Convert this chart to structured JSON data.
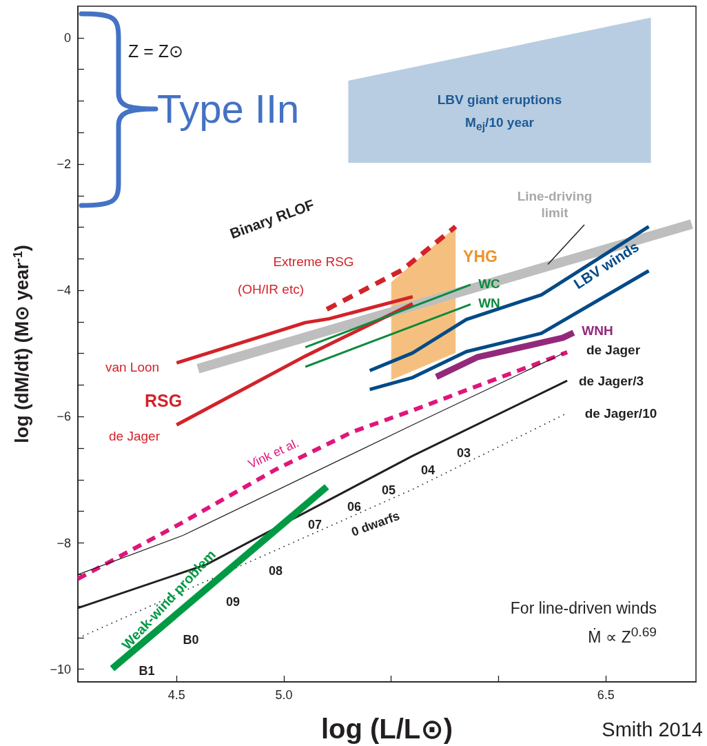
{
  "chart_data": {
    "type": "line",
    "xlabel": "log (L/L⊙)",
    "ylabel": "log (dM/dt) (M⊙ year$^{-1}$)",
    "xlim": [
      4.04,
      6.92
    ],
    "ylim": [
      -10.2,
      0.5
    ],
    "xticks": [
      4.5,
      {
        "value": 5,
        "label": "5.0"
      },
      {
        "value": 5.5,
        "label": null
      },
      {
        "value": 6,
        "label": null
      },
      6.5
    ],
    "yticks": [
      0,
      {
        "value": -0.5,
        "label": null
      },
      {
        "value": -1,
        "label": null
      },
      {
        "value": -1.5,
        "label": null
      },
      -2,
      {
        "value": -2.5,
        "label": null
      },
      {
        "value": -3,
        "label": null
      },
      {
        "value": -3.5,
        "label": null
      },
      -4,
      {
        "value": -4.5,
        "label": null
      },
      {
        "value": -5,
        "label": null
      },
      {
        "value": -5.5,
        "label": null
      },
      -6,
      {
        "value": -6.5,
        "label": null
      },
      {
        "value": -7,
        "label": null
      },
      {
        "value": -7.5,
        "label": null
      },
      -8,
      {
        "value": -8.5,
        "label": null
      },
      {
        "value": -9,
        "label": null
      },
      {
        "value": -9.5,
        "label": null
      },
      -10
    ],
    "grid": false,
    "marker": "none",
    "series": [
      {
        "type": "area",
        "color": "#b8cde1",
        "x": [
          5.3,
          6.71,
          6.71,
          5.3
        ],
        "values": [
          -0.68,
          0.32,
          -1.98,
          -1.98
        ]
      },
      {
        "type": "area",
        "color": "#f5c07f",
        "x": [
          5.5,
          5.8,
          5.8,
          5.5
        ],
        "values": [
          -3.87,
          -3.0,
          -4.99,
          -5.42
        ]
      },
      {
        "color": "#bebebe",
        "line_style": "solid",
        "x": [
          4.6,
          6.9
        ],
        "values": [
          -5.24,
          -2.95
        ]
      },
      {
        "color": "#d2232a",
        "line_style": "solid",
        "x": [
          4.5,
          5.1,
          5.21,
          5.6
        ],
        "values": [
          -5.15,
          -4.51,
          -4.45,
          -4.1
        ]
      },
      {
        "color": "#d2232a",
        "line_style": "solid",
        "x": [
          4.5,
          5.1,
          5.6
        ],
        "values": [
          -6.13,
          -5.04,
          -4.21
        ]
      },
      {
        "color": "#d2232a",
        "line_style": "dashed",
        "x": [
          5.2,
          5.55,
          5.8
        ],
        "values": [
          -4.3,
          -3.68,
          -2.99
        ]
      },
      {
        "color": "#0b8a3e",
        "line_style": "solid",
        "x": [
          5.1,
          5.87
        ],
        "values": [
          -4.9,
          -3.91
        ]
      },
      {
        "color": "#0b8a3e",
        "line_style": "solid",
        "x": [
          5.1,
          5.87
        ],
        "values": [
          -5.21,
          -4.22
        ]
      },
      {
        "color": "#004b87",
        "line_style": "solid",
        "x": [
          5.4,
          5.6,
          5.85,
          6.2,
          6.7
        ],
        "values": [
          -5.27,
          -4.99,
          -4.46,
          -4.07,
          -2.99
        ]
      },
      {
        "color": "#004b87",
        "line_style": "solid",
        "x": [
          5.4,
          5.6,
          5.85,
          6.2,
          6.7
        ],
        "values": [
          -5.57,
          -5.38,
          -4.97,
          -4.68,
          -3.69
        ]
      },
      {
        "color": "#93297b",
        "line_style": "solid",
        "x": [
          5.71,
          5.9,
          6.3,
          6.35
        ],
        "values": [
          -5.37,
          -5.06,
          -4.75,
          -4.67
        ]
      },
      {
        "color": "#e0157a",
        "line_style": "dashed",
        "x": [
          4.04,
          4.52,
          4.96,
          5.32,
          5.6,
          6.32
        ],
        "values": [
          -8.57,
          -7.69,
          -6.84,
          -6.24,
          -5.9,
          -4.98
        ]
      },
      {
        "color": "#231f20",
        "line_style": "solid",
        "x": [
          4.04,
          4.53,
          5.6,
          6.3
        ],
        "values": [
          -8.5,
          -7.88,
          -6.13,
          -5.0
        ]
      },
      {
        "color": "#231f20",
        "line_style": "solid",
        "x": [
          4.04,
          4.64,
          5.6,
          6.32
        ],
        "values": [
          -9.03,
          -8.34,
          -6.62,
          -5.43
        ]
      },
      {
        "color": "#231f20",
        "line_style": "dotted",
        "x": [
          4.04,
          5.6,
          6.31
        ],
        "values": [
          -9.51,
          -7.15,
          -5.96
        ]
      },
      {
        "color": "#009a44",
        "line_style": "solid",
        "x": [
          4.2,
          5.2
        ],
        "values": [
          -9.99,
          -7.11
        ]
      }
    ],
    "annotations": [
      "Z = Z⊙",
      "Type IIn",
      "LBV giant eruptions",
      "M$_{ej}$/10 year",
      "Binary RLOF",
      {
        "text": "Line-driving\nlimit",
        "x": 6.23,
        "y": -3.59
      },
      "Extreme RSG",
      "(OH/IR etc)",
      "YHG",
      "WC",
      "WN",
      "LBV winds",
      "WNH",
      "de Jager",
      "de Jager/3",
      "de Jager/10",
      "van Loon",
      "RSG",
      "de Jager",
      "Vink et al.",
      "03",
      "04",
      "05",
      "06",
      "07",
      "0 dwarfs",
      "08",
      "09",
      "B0",
      "B1",
      "Weak-wind problem",
      "For line-driven winds",
      "Ṁ ∝ Z$^{0.69}$",
      "Smith 2014"
    ]
  }
}
